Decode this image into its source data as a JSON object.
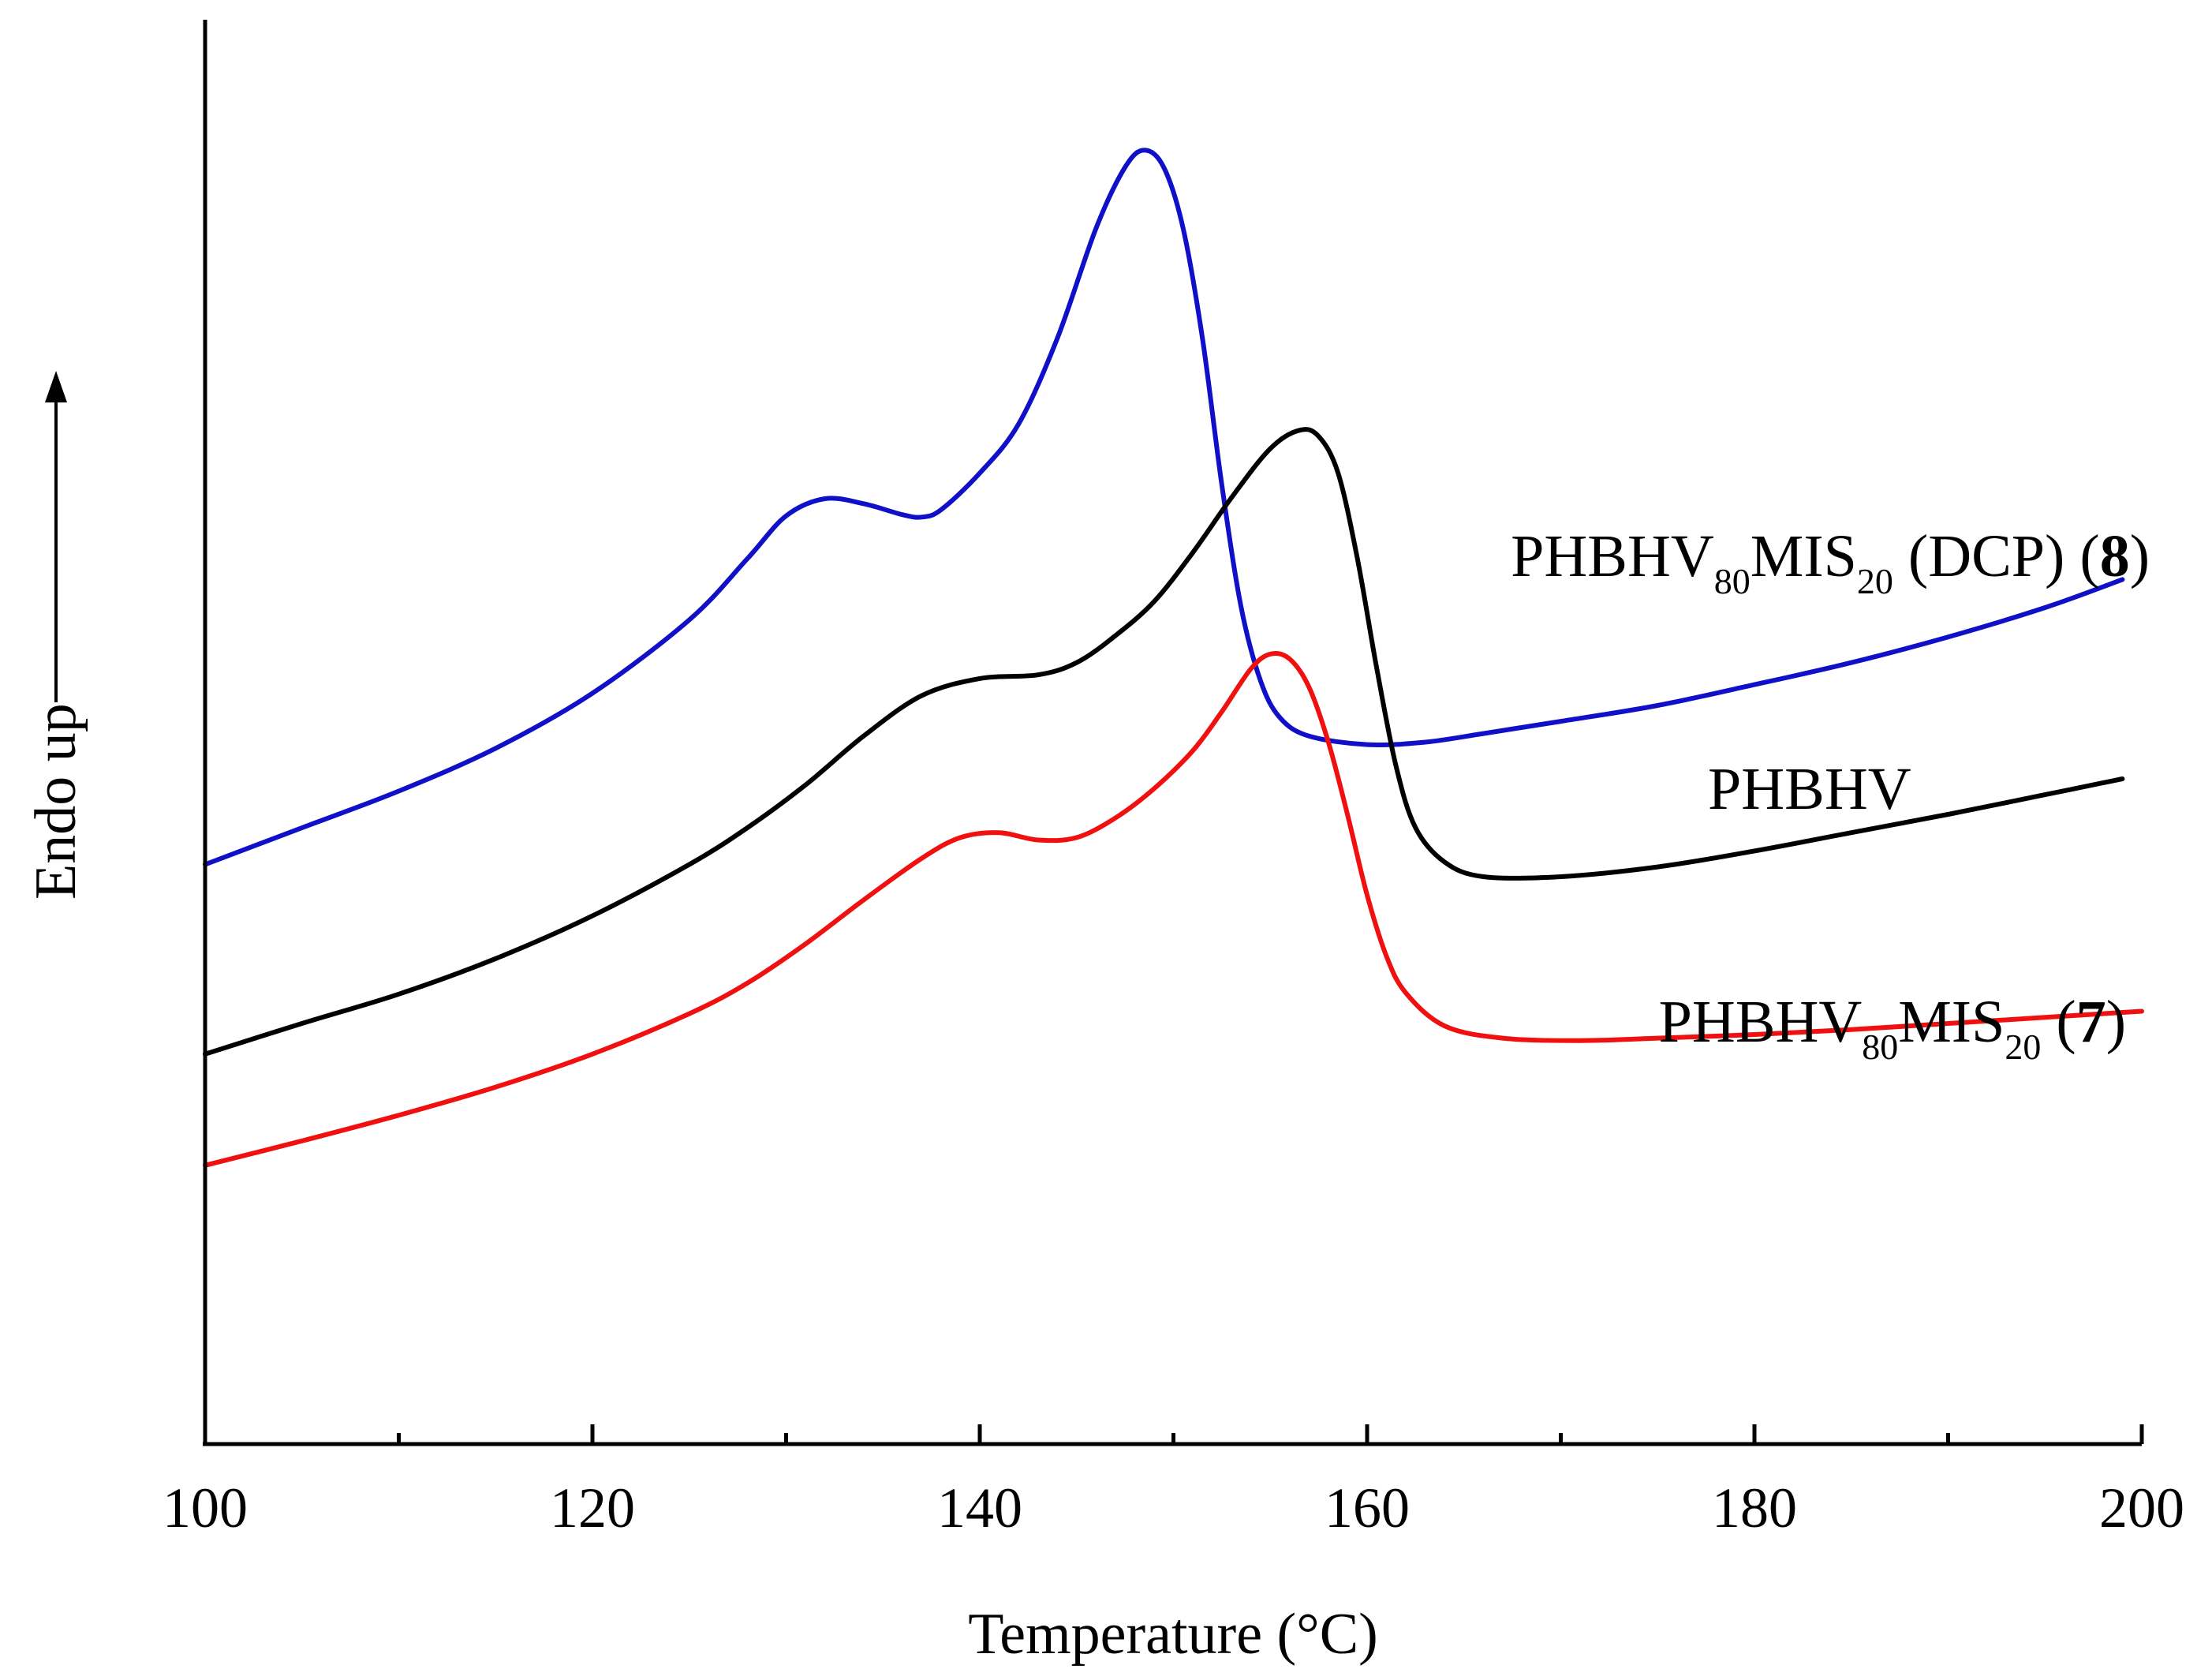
{
  "chart_data": {
    "type": "line",
    "title": "",
    "xlabel": "Temperature (°C)",
    "ylabel": "Endo up",
    "xlim": [
      100,
      200
    ],
    "ylim": [
      0,
      100
    ],
    "x_ticks": [
      100,
      120,
      140,
      160,
      180,
      200
    ],
    "x_minor_ticks": [
      110,
      130,
      150,
      170,
      190
    ],
    "y_ticks": [],
    "grid": false,
    "series": [
      {
        "name": "PHBHV80MIS20 (DCP) (8)",
        "label_parts": [
          {
            "text": "PHBHV",
            "style": "normal"
          },
          {
            "text": "80",
            "style": "sub"
          },
          {
            "text": "MIS",
            "style": "normal"
          },
          {
            "text": "20",
            "style": "sub"
          },
          {
            "text": " (DCP) (",
            "style": "normal"
          },
          {
            "text": "8",
            "style": "bold"
          },
          {
            "text": ")",
            "style": "normal"
          }
        ],
        "color": "#1010C8",
        "points": [
          [
            100,
            39
          ],
          [
            105,
            42
          ],
          [
            110,
            45
          ],
          [
            115,
            48.5
          ],
          [
            120,
            53
          ],
          [
            125,
            59
          ],
          [
            128,
            64
          ],
          [
            130,
            67.5
          ],
          [
            132,
            68.9
          ],
          [
            134,
            68.5
          ],
          [
            136,
            67.6
          ],
          [
            137,
            67.4
          ],
          [
            138,
            68
          ],
          [
            140,
            71
          ],
          [
            142,
            75
          ],
          [
            144,
            82
          ],
          [
            146,
            91
          ],
          [
            147.5,
            96
          ],
          [
            148.5,
            97.4
          ],
          [
            149.5,
            96
          ],
          [
            150.5,
            91
          ],
          [
            151.5,
            82
          ],
          [
            152.5,
            70
          ],
          [
            153.5,
            60
          ],
          [
            154.5,
            54
          ],
          [
            155.5,
            51
          ],
          [
            157,
            49.5
          ],
          [
            160,
            48.8
          ],
          [
            163,
            49
          ],
          [
            166,
            49.7
          ],
          [
            170,
            50.7
          ],
          [
            175,
            52
          ],
          [
            180,
            53.7
          ],
          [
            185,
            55.5
          ],
          [
            190,
            57.6
          ],
          [
            195,
            60
          ],
          [
            199,
            62.3
          ]
        ]
      },
      {
        "name": "PHBHV",
        "label_parts": [
          {
            "text": "PHBHV",
            "style": "normal"
          }
        ],
        "color": "#000000",
        "points": [
          [
            100,
            23.5
          ],
          [
            105,
            26
          ],
          [
            110,
            28.4
          ],
          [
            115,
            31.3
          ],
          [
            120,
            34.8
          ],
          [
            125,
            39
          ],
          [
            128,
            42
          ],
          [
            131,
            45.5
          ],
          [
            134,
            49.5
          ],
          [
            137,
            52.8
          ],
          [
            140,
            54.2
          ],
          [
            143,
            54.5
          ],
          [
            145,
            55.5
          ],
          [
            147,
            57.7
          ],
          [
            149,
            60.5
          ],
          [
            151,
            64.5
          ],
          [
            153,
            69
          ],
          [
            155,
            73
          ],
          [
            156.5,
            74.5
          ],
          [
            157.5,
            74
          ],
          [
            158.5,
            71
          ],
          [
            159.5,
            64
          ],
          [
            160.5,
            55
          ],
          [
            161.5,
            47
          ],
          [
            162.5,
            42
          ],
          [
            164,
            39.2
          ],
          [
            166,
            38
          ],
          [
            170,
            38
          ],
          [
            175,
            38.8
          ],
          [
            180,
            40.1
          ],
          [
            185,
            41.6
          ],
          [
            190,
            43.1
          ],
          [
            195,
            44.7
          ],
          [
            199,
            46
          ]
        ]
      },
      {
        "name": "PHBHV80MIS20 (7)",
        "label_parts": [
          {
            "text": "PHBHV",
            "style": "normal"
          },
          {
            "text": "80",
            "style": "sub"
          },
          {
            "text": "MIS",
            "style": "normal"
          },
          {
            "text": "20",
            "style": "sub"
          },
          {
            "text": " (",
            "style": "normal"
          },
          {
            "text": "7",
            "style": "bold"
          },
          {
            "text": ")",
            "style": "normal"
          }
        ],
        "color": "#F01010",
        "points": [
          [
            100,
            14.4
          ],
          [
            105,
            16.4
          ],
          [
            110,
            18.5
          ],
          [
            115,
            20.8
          ],
          [
            120,
            23.5
          ],
          [
            125,
            26.8
          ],
          [
            128,
            29.3
          ],
          [
            131,
            32.5
          ],
          [
            134,
            36.1
          ],
          [
            137,
            39.5
          ],
          [
            139,
            41.2
          ],
          [
            141,
            41.6
          ],
          [
            143,
            41
          ],
          [
            145,
            41.2
          ],
          [
            147,
            42.8
          ],
          [
            149,
            45.2
          ],
          [
            151,
            48.3
          ],
          [
            152.5,
            51.5
          ],
          [
            154,
            55
          ],
          [
            155,
            56.2
          ],
          [
            156,
            55.8
          ],
          [
            157,
            53.5
          ],
          [
            158,
            49
          ],
          [
            159,
            43
          ],
          [
            160,
            36.5
          ],
          [
            161,
            31.5
          ],
          [
            162,
            28.5
          ],
          [
            164,
            25.8
          ],
          [
            167,
            24.8
          ],
          [
            171,
            24.6
          ],
          [
            175,
            24.8
          ],
          [
            180,
            25.1
          ],
          [
            185,
            25.5
          ],
          [
            190,
            26
          ],
          [
            195,
            26.5
          ],
          [
            200,
            27
          ]
        ]
      }
    ],
    "annotations": [
      {
        "series": 0,
        "anchor_x": 172
      },
      {
        "series": 1,
        "anchor_x": 185
      },
      {
        "series": 2,
        "anchor_x": 187
      }
    ]
  }
}
